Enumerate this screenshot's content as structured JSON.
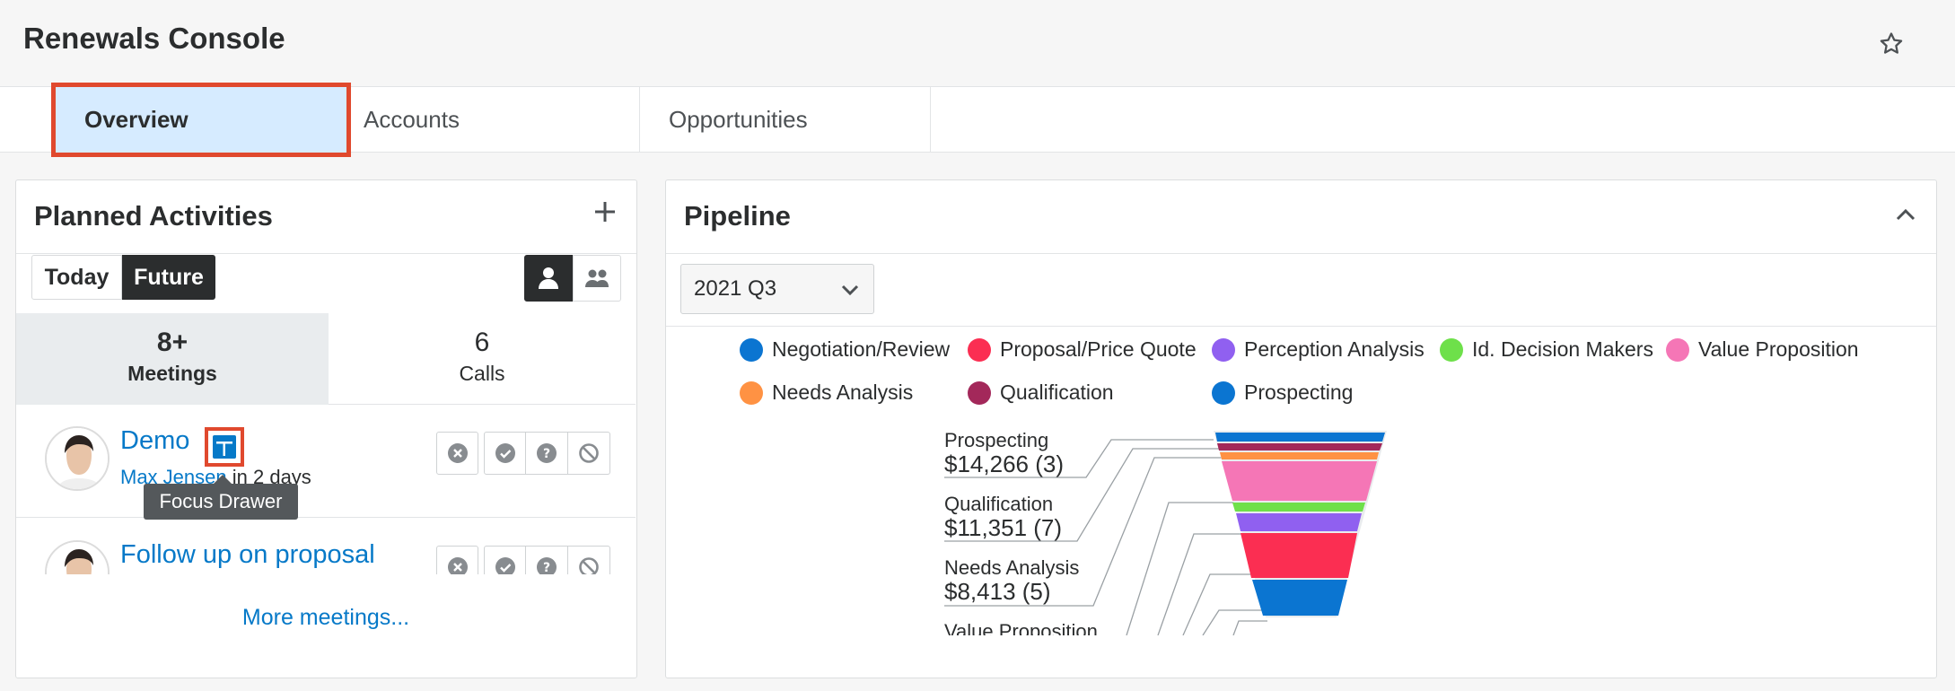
{
  "header": {
    "title": "Renewals Console",
    "favorite_icon": "star-icon"
  },
  "tabs": [
    {
      "label": "Overview",
      "active": true
    },
    {
      "label": "Accounts",
      "active": false
    },
    {
      "label": "Opportunities",
      "active": false
    }
  ],
  "planned_activities": {
    "title": "Planned Activities",
    "add_icon": "plus-icon",
    "toggle": {
      "today": "Today",
      "future": "Future",
      "selected": "Future"
    },
    "view_icons": [
      "user-icon",
      "group-icon"
    ],
    "counts": [
      {
        "value": "8+",
        "label": "Meetings",
        "selected": true
      },
      {
        "value": "6",
        "label": "Calls",
        "selected": false
      }
    ],
    "items": [
      {
        "title": "Demo",
        "assignee": "Max Jensen",
        "due": "in 2 days"
      },
      {
        "title": "Follow up on proposal",
        "assignee": "",
        "due": ""
      }
    ],
    "action_icons": [
      "close-circle-icon",
      "check-circle-icon",
      "question-circle-icon",
      "ban-icon"
    ],
    "tooltip": "Focus Drawer",
    "more_link": "More meetings..."
  },
  "pipeline": {
    "title": "Pipeline",
    "collapse_icon": "chevron-up-icon",
    "period": "2021 Q3",
    "legend": [
      {
        "label": "Negotiation/Review",
        "color": "#0b75d1"
      },
      {
        "label": "Proposal/Price Quote",
        "color": "#fb2e52"
      },
      {
        "label": "Perception Analysis",
        "color": "#9060f0"
      },
      {
        "label": "Id. Decision Makers",
        "color": "#6ee04a"
      },
      {
        "label": "Value Proposition",
        "color": "#f576b6"
      },
      {
        "label": "Needs Analysis",
        "color": "#ff9243"
      },
      {
        "label": "Qualification",
        "color": "#a3285a"
      },
      {
        "label": "Prospecting",
        "color": "#0b75d1"
      }
    ],
    "funnel_labels": [
      {
        "stage": "Prospecting",
        "amount": "$14,266 (3)"
      },
      {
        "stage": "Qualification",
        "amount": "$11,351 (7)"
      },
      {
        "stage": "Needs Analysis",
        "amount": "$8,413 (5)"
      },
      {
        "stage": "Value Proposition",
        "amount": ""
      }
    ]
  }
}
